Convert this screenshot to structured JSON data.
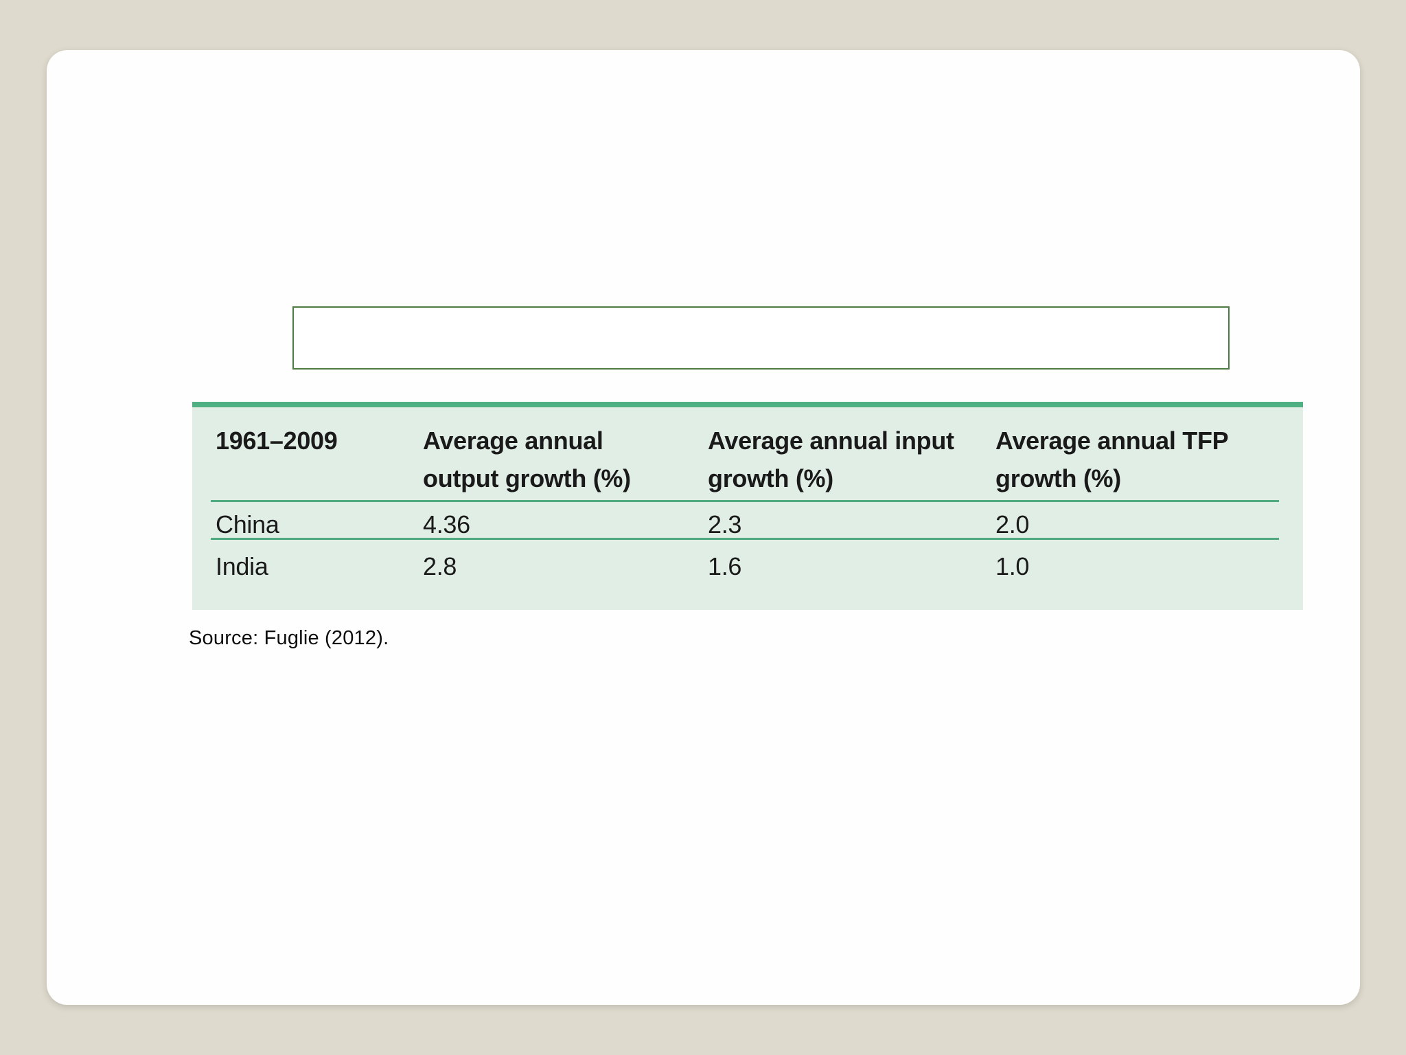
{
  "slide": {
    "background_color": "#dedacd",
    "card_color": "#fefefe"
  },
  "title_box": {
    "text": "",
    "border_color": "#4e7b41"
  },
  "table": {
    "accent_color": "#4fb183",
    "body_color": "#e0eee6",
    "separator_color": "#50aa80",
    "headers": [
      "1961–2009",
      "Average annual\noutput growth (%)",
      "Average annual input\ngrowth (%)",
      "Average annual TFP\ngrowth (%)"
    ],
    "rows": [
      {
        "label": "China",
        "values": [
          "4.36",
          "2.3",
          "2.0"
        ]
      },
      {
        "label": "India",
        "values": [
          "2.8",
          "1.6",
          "1.0"
        ]
      }
    ]
  },
  "source_note": "Source: Fuglie (2012).",
  "chart_data": {
    "type": "table",
    "columns": [
      "1961–2009",
      "Average annual output growth (%)",
      "Average annual input growth (%)",
      "Average annual TFP growth (%)"
    ],
    "rows": [
      [
        "China",
        4.36,
        2.3,
        2.0
      ],
      [
        "India",
        2.8,
        1.6,
        1.0
      ]
    ],
    "source": "Source: Fuglie (2012)."
  }
}
